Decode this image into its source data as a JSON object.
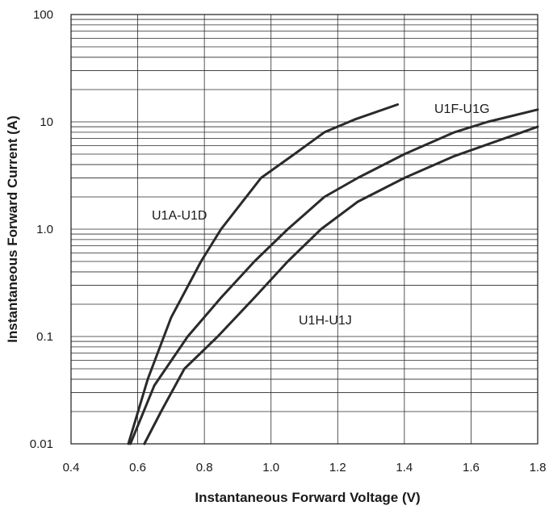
{
  "chart_data": {
    "type": "line",
    "title": "",
    "xlabel": "Instantaneous Forward Voltage (V)",
    "ylabel": "Instantaneous Forward Current (A)",
    "xlim": [
      0.4,
      1.8
    ],
    "ylim": [
      0.01,
      100
    ],
    "y_scale": "log",
    "grid": true,
    "x_ticks": [
      0.4,
      0.6,
      0.8,
      1.0,
      1.2,
      1.4,
      1.6,
      1.8
    ],
    "x_tick_labels": [
      "0.4",
      "0.6",
      "0.8",
      "1.0",
      "1.2",
      "1.4",
      "1.6",
      "1.8"
    ],
    "y_ticks": [
      0.01,
      0.1,
      1,
      10,
      100
    ],
    "y_tick_labels": [
      "0.01",
      "0.1",
      "1.0",
      "10",
      "100"
    ],
    "series": [
      {
        "name": "U1A-U1D",
        "x": [
          0.572,
          0.63,
          0.7,
          0.79,
          0.85,
          0.97,
          1.07,
          1.16,
          1.25,
          1.38
        ],
        "y": [
          0.01,
          0.04,
          0.15,
          0.5,
          1.0,
          3.0,
          5.0,
          8.0,
          10.5,
          14.5
        ]
      },
      {
        "name": "U1F-U1G",
        "x": [
          0.578,
          0.65,
          0.75,
          0.85,
          0.95,
          1.05,
          1.16,
          1.26,
          1.4,
          1.55,
          1.65,
          1.8
        ],
        "y": [
          0.01,
          0.035,
          0.1,
          0.23,
          0.5,
          1.0,
          2.0,
          3.0,
          5.0,
          8.0,
          10.0,
          13.0
        ]
      },
      {
        "name": "U1H-U1J",
        "x": [
          0.62,
          0.67,
          0.74,
          0.84,
          0.95,
          1.05,
          1.15,
          1.26,
          1.4,
          1.55,
          1.7,
          1.8
        ],
        "y": [
          0.01,
          0.02,
          0.05,
          0.1,
          0.23,
          0.5,
          1.0,
          1.8,
          3.0,
          4.8,
          7.0,
          9.0
        ]
      }
    ],
    "annotations": [
      "U1A-U1D",
      "U1F-U1G",
      "U1H-U1J"
    ]
  }
}
